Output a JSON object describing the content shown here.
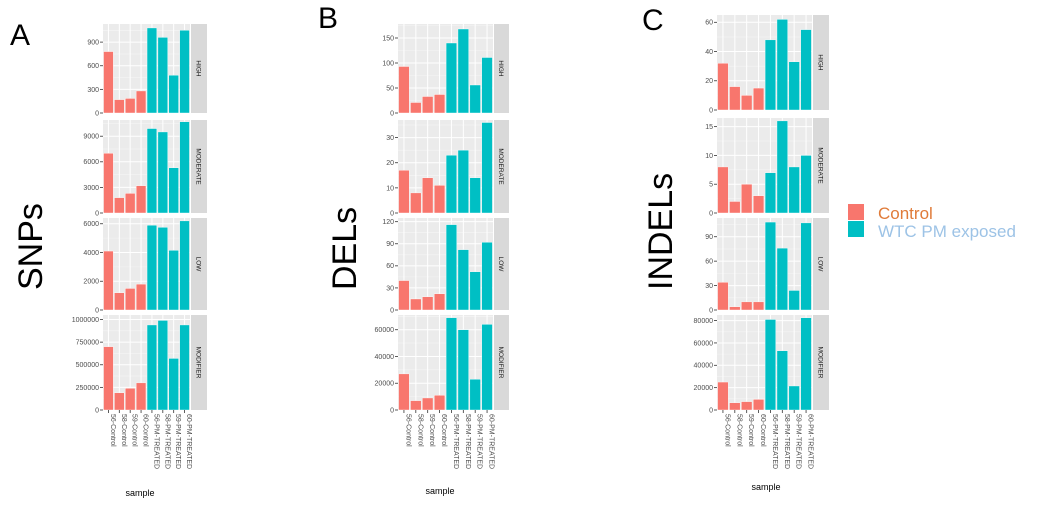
{
  "figure": {
    "legend": {
      "items": [
        {
          "label": "Control",
          "color": "#F8766D",
          "text_color": "#E07B39"
        },
        {
          "label": "WTC PM exposed",
          "color": "#00BFC4",
          "text_color": "#9DC3E6"
        }
      ]
    }
  },
  "chart_data": [
    {
      "type": "bar",
      "panel_letter": "A",
      "title": "SNPs",
      "xlabel": "sample",
      "categories": [
        "56-Control",
        "58-Control",
        "59-Control",
        "60-Control",
        "56-PM-TREATED",
        "58-PM-TREATED",
        "59-PM-TREATED",
        "60-PM-TREATED"
      ],
      "group": [
        "Control",
        "Control",
        "Control",
        "Control",
        "WTC PM exposed",
        "WTC PM exposed",
        "WTC PM exposed",
        "WTC PM exposed"
      ],
      "grid": true,
      "facets": [
        {
          "label": "HIGH",
          "ylim": [
            0,
            1130
          ],
          "ticks": [
            0,
            300,
            600,
            900
          ],
          "tick_labels": [
            "0",
            "300",
            "600",
            "900"
          ],
          "values": [
            780,
            170,
            185,
            280,
            1080,
            960,
            480,
            1050
          ]
        },
        {
          "label": "MODERATE",
          "ylim": [
            0,
            10900
          ],
          "ticks": [
            0,
            3000,
            6000,
            9000
          ],
          "tick_labels": [
            "0",
            "3000",
            "6000",
            "9000"
          ],
          "values": [
            7000,
            1800,
            2300,
            3200,
            9900,
            9500,
            5300,
            10700
          ]
        },
        {
          "label": "LOW",
          "ylim": [
            0,
            6400
          ],
          "ticks": [
            0,
            2000,
            4000,
            6000
          ],
          "tick_labels": [
            "0",
            "2000",
            "4000",
            "6000"
          ],
          "values": [
            4100,
            1200,
            1500,
            1800,
            5900,
            5750,
            4150,
            6200
          ]
        },
        {
          "label": "MODIFIER",
          "ylim": [
            0,
            1050000
          ],
          "ticks": [
            0,
            250000,
            500000,
            750000,
            1000000
          ],
          "tick_labels": [
            "0",
            "250000",
            "500000",
            "750000",
            "1000000"
          ],
          "values": [
            700000,
            190000,
            240000,
            300000,
            940000,
            990000,
            570000,
            940000
          ]
        }
      ]
    },
    {
      "type": "bar",
      "panel_letter": "B",
      "title": "DELs",
      "xlabel": "sample",
      "categories": [
        "56-Control",
        "58-Control",
        "59-Control",
        "60-Control",
        "56-PM-TREATED",
        "58-PM-TREATED",
        "59-PM-TREATED",
        "60-PM-TREATED"
      ],
      "group": [
        "Control",
        "Control",
        "Control",
        "Control",
        "WTC PM exposed",
        "WTC PM exposed",
        "WTC PM exposed",
        "WTC PM exposed"
      ],
      "grid": true,
      "facets": [
        {
          "label": "HIGH",
          "ylim": [
            0,
            178
          ],
          "ticks": [
            0,
            50,
            100,
            150
          ],
          "tick_labels": [
            "0",
            "50",
            "100",
            "150"
          ],
          "values": [
            93,
            21,
            33,
            37,
            140,
            168,
            56,
            111
          ]
        },
        {
          "label": "MODERATE",
          "ylim": [
            0,
            37
          ],
          "ticks": [
            0,
            10,
            20,
            30
          ],
          "tick_labels": [
            "0",
            "10",
            "20",
            "30"
          ],
          "values": [
            17,
            8,
            14,
            11,
            23,
            25,
            14,
            36
          ]
        },
        {
          "label": "LOW",
          "ylim": [
            0,
            125
          ],
          "ticks": [
            0,
            30,
            60,
            90,
            120
          ],
          "tick_labels": [
            "0",
            "30",
            "60",
            "90",
            "120"
          ],
          "values": [
            40,
            15,
            18,
            22,
            116,
            82,
            52,
            92
          ]
        },
        {
          "label": "MODIFIER",
          "ylim": [
            0,
            71000
          ],
          "ticks": [
            0,
            20000,
            40000,
            60000
          ],
          "tick_labels": [
            "0",
            "20000",
            "40000",
            "60000"
          ],
          "values": [
            27000,
            7000,
            9000,
            11000,
            69000,
            60000,
            23000,
            64000
          ]
        }
      ]
    },
    {
      "type": "bar",
      "panel_letter": "C",
      "title": "INDELs",
      "xlabel": "sample",
      "categories": [
        "56-Control",
        "58-Control",
        "59-Control",
        "60-Control",
        "56-PM-TREATED",
        "58-PM-TREATED",
        "59-PM-TREATED",
        "60-PM-TREATED"
      ],
      "group": [
        "Control",
        "Control",
        "Control",
        "Control",
        "WTC PM exposed",
        "WTC PM exposed",
        "WTC PM exposed",
        "WTC PM exposed"
      ],
      "grid": true,
      "facets": [
        {
          "label": "HIGH",
          "ylim": [
            0,
            65
          ],
          "ticks": [
            0,
            20,
            40,
            60
          ],
          "tick_labels": [
            "0",
            "20",
            "40",
            "60"
          ],
          "values": [
            32,
            16,
            10,
            15,
            48,
            62,
            33,
            55
          ]
        },
        {
          "label": "MODERATE",
          "ylim": [
            0,
            16.5
          ],
          "ticks": [
            0,
            5,
            10,
            15
          ],
          "tick_labels": [
            "0",
            "5",
            "10",
            "15"
          ],
          "values": [
            8,
            2,
            5,
            3,
            7,
            16,
            8,
            10
          ]
        },
        {
          "label": "LOW",
          "ylim": [
            0,
            113
          ],
          "ticks": [
            0,
            30,
            60,
            90
          ],
          "tick_labels": [
            "0",
            "30",
            "60",
            "90"
          ],
          "values": [
            34,
            4,
            10,
            10,
            108,
            76,
            24,
            107
          ]
        },
        {
          "label": "MODIFIER",
          "ylim": [
            0,
            85000
          ],
          "ticks": [
            0,
            20000,
            40000,
            60000,
            80000
          ],
          "tick_labels": [
            "0",
            "20000",
            "40000",
            "60000",
            "80000"
          ],
          "values": [
            25000,
            6500,
            7500,
            9500,
            81000,
            53000,
            21500,
            82500
          ]
        }
      ]
    }
  ]
}
